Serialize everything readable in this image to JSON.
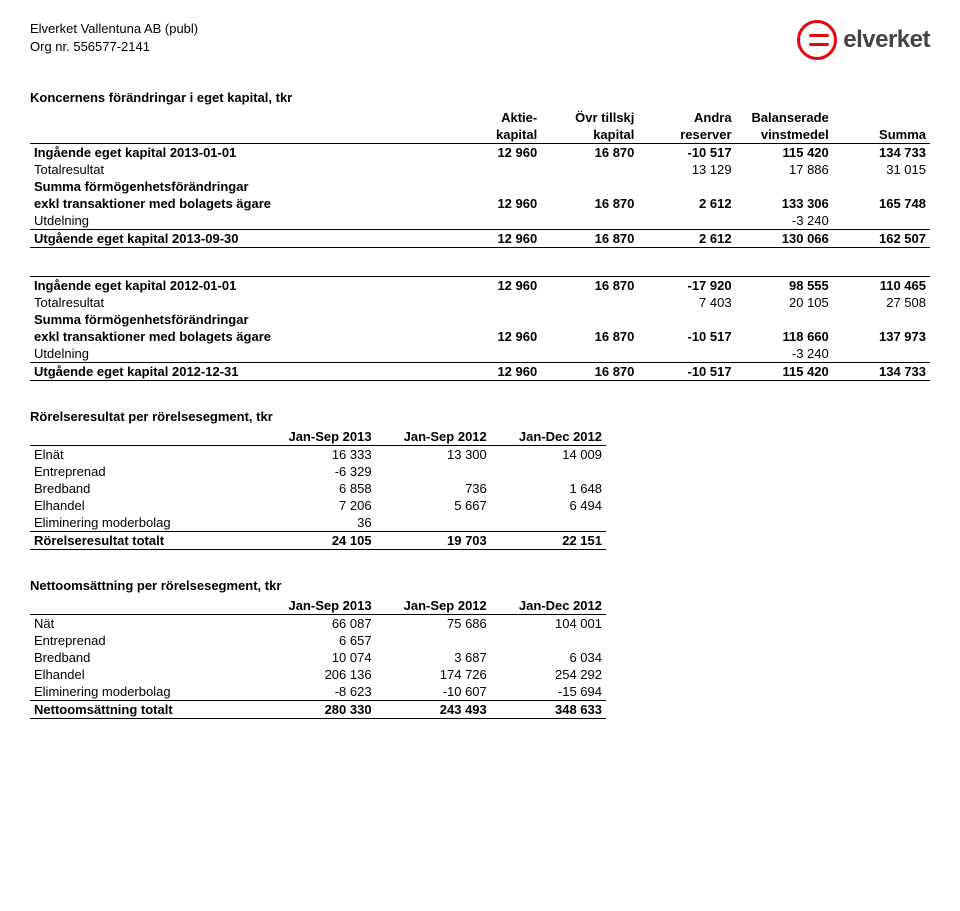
{
  "header": {
    "company": "Elverket Vallentuna AB (publ)",
    "orgnr": "Org nr. 556577-2141",
    "logo_text": "elverket"
  },
  "tables": {
    "equity1": {
      "title": "Koncernens förändringar i eget kapital, tkr",
      "head_top": [
        "",
        "Aktie-",
        "Övr tillskj",
        "Andra",
        "Balanserade",
        ""
      ],
      "head_bot": [
        "",
        "kapital",
        "kapital",
        "reserver",
        "vinstmedel",
        "Summa"
      ],
      "rows": [
        {
          "label": "Ingående eget kapital 2013-01-01",
          "c": [
            "12 960",
            "16 870",
            "-10 517",
            "115 420",
            "134 733"
          ],
          "bold": true
        },
        {
          "label": "Totalresultat",
          "c": [
            "",
            "",
            "13 129",
            "17 886",
            "31 015"
          ]
        },
        {
          "label": "Summa förmögenhetsförändringar",
          "c": [
            "",
            "",
            "",
            "",
            ""
          ],
          "bold": true
        },
        {
          "label": "exkl transaktioner med bolagets ägare",
          "c": [
            "12 960",
            "16 870",
            "2 612",
            "133 306",
            "165 748"
          ],
          "bold": true
        },
        {
          "label": "Utdelning",
          "c": [
            "",
            "",
            "",
            "-3 240",
            ""
          ]
        },
        {
          "label": "Utgående eget kapital 2013-09-30",
          "c": [
            "12 960",
            "16 870",
            "2 612",
            "130 066",
            "162 507"
          ],
          "bold": true,
          "bordered": true
        }
      ]
    },
    "equity2": {
      "rows": [
        {
          "label": "Ingående eget kapital 2012-01-01",
          "c": [
            "12 960",
            "16 870",
            "-17 920",
            "98 555",
            "110 465"
          ],
          "bold": true,
          "border_top": true
        },
        {
          "label": "Totalresultat",
          "c": [
            "",
            "",
            "7 403",
            "20 105",
            "27 508"
          ]
        },
        {
          "label": "Summa förmögenhetsförändringar",
          "c": [
            "",
            "",
            "",
            "",
            ""
          ],
          "bold": true
        },
        {
          "label": "exkl transaktioner med bolagets ägare",
          "c": [
            "12 960",
            "16 870",
            "-10 517",
            "118 660",
            "137 973"
          ],
          "bold": true
        },
        {
          "label": "Utdelning",
          "c": [
            "",
            "",
            "",
            "-3 240",
            ""
          ]
        },
        {
          "label": "Utgående eget kapital 2012-12-31",
          "c": [
            "12 960",
            "16 870",
            "-10 517",
            "115 420",
            "134 733"
          ],
          "bold": true,
          "bordered": true
        }
      ]
    },
    "seg1": {
      "title": "Rörelseresultat per rörelsesegment, tkr",
      "head": [
        "",
        "Jan-Sep 2013",
        "Jan-Sep 2012",
        "Jan-Dec 2012"
      ],
      "rows": [
        {
          "label": "Elnät",
          "c": [
            "16 333",
            "13 300",
            "14 009"
          ]
        },
        {
          "label": "Entreprenad",
          "c": [
            "-6 329",
            "",
            ""
          ]
        },
        {
          "label": "Bredband",
          "c": [
            "6 858",
            "736",
            "1 648"
          ]
        },
        {
          "label": "Elhandel",
          "c": [
            "7 206",
            "5 667",
            "6 494"
          ]
        },
        {
          "label": "Eliminering moderbolag",
          "c": [
            "36",
            "",
            ""
          ]
        },
        {
          "label": "Rörelseresultat totalt",
          "c": [
            "24 105",
            "19 703",
            "22 151"
          ],
          "bold": true,
          "bordered": true
        }
      ]
    },
    "seg2": {
      "title": "Nettoomsättning per rörelsesegment, tkr",
      "head": [
        "",
        "Jan-Sep 2013",
        "Jan-Sep 2012",
        "Jan-Dec 2012"
      ],
      "rows": [
        {
          "label": "Nät",
          "c": [
            "66 087",
            "75 686",
            "104 001"
          ]
        },
        {
          "label": "Entreprenad",
          "c": [
            "6 657",
            "",
            ""
          ]
        },
        {
          "label": "Bredband",
          "c": [
            "10 074",
            "3 687",
            "6 034"
          ]
        },
        {
          "label": "Elhandel",
          "c": [
            "206 136",
            "174 726",
            "254 292"
          ]
        },
        {
          "label": "Eliminering moderbolag",
          "c": [
            "-8 623",
            "-10 607",
            "-15 694"
          ]
        },
        {
          "label": "Nettoomsättning totalt",
          "c": [
            "280 330",
            "243 493",
            "348 633"
          ],
          "bold": true,
          "bordered": true
        }
      ]
    }
  }
}
